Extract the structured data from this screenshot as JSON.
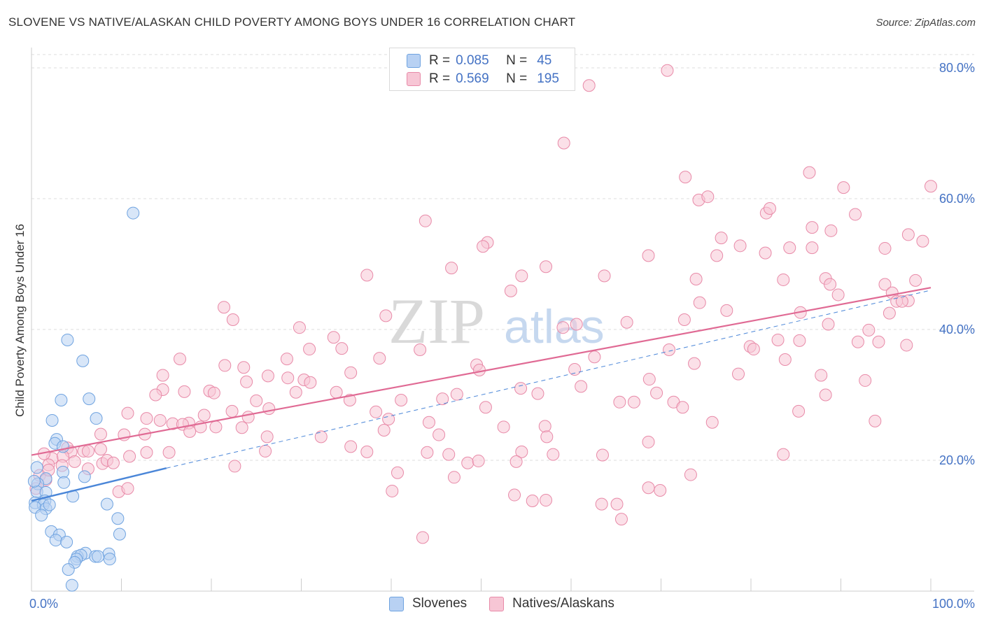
{
  "title": "SLOVENE VS NATIVE/ALASKAN CHILD POVERTY AMONG BOYS UNDER 16 CORRELATION CHART",
  "source": "Source: ZipAtlas.com",
  "watermark": {
    "zip": "ZIP",
    "atlas": "atlas"
  },
  "legend": {
    "r_label": "R =",
    "n_label": "N =",
    "series": [
      {
        "name": "Slovenes",
        "r": "0.085",
        "n": "45",
        "color": "#6fa3e0",
        "fill": "#b8d1f3"
      },
      {
        "name": "Natives/Alaskans",
        "r": "0.569",
        "n": "195",
        "color": "#e88aa8",
        "fill": "#f7c6d5"
      }
    ]
  },
  "chart_data": {
    "type": "scatter",
    "title": "SLOVENE VS NATIVE/ALASKAN CHILD POVERTY AMONG BOYS UNDER 16 CORRELATION CHART",
    "xlabel": "",
    "ylabel": "Child Poverty Among Boys Under 16",
    "xlim": [
      0,
      100
    ],
    "ylim": [
      0,
      80
    ],
    "x_tick_labels": [
      "0.0%",
      "100.0%"
    ],
    "y_ticks": [
      20,
      40,
      60,
      80
    ],
    "y_tick_labels": [
      "20.0%",
      "40.0%",
      "60.0%",
      "80.0%"
    ],
    "grid": "horizontal dashed",
    "series": [
      {
        "name": "Slovenes",
        "color": "#4a86d8",
        "trend": {
          "x0": 0,
          "y0": 13.8,
          "x1": 15,
          "y1": 18.8,
          "dashed_to_x": 100,
          "dashed_to_y": 46
        },
        "points": [
          [
            11.3,
            57.8
          ],
          [
            4,
            38.4
          ],
          [
            5.7,
            35.2
          ],
          [
            6.4,
            29.4
          ],
          [
            3.3,
            29.2
          ],
          [
            2.3,
            26.1
          ],
          [
            7.2,
            26.4
          ],
          [
            2.8,
            23.2
          ],
          [
            2.6,
            22.6
          ],
          [
            3.5,
            22.1
          ],
          [
            0.6,
            18.9
          ],
          [
            3.5,
            18.2
          ],
          [
            5.9,
            17.5
          ],
          [
            1.6,
            17.2
          ],
          [
            0.7,
            16.4
          ],
          [
            0.6,
            15.2
          ],
          [
            3.6,
            16.6
          ],
          [
            1.6,
            15.1
          ],
          [
            4.6,
            14.5
          ],
          [
            0.4,
            13.5
          ],
          [
            1.5,
            13.8
          ],
          [
            1.3,
            13.2
          ],
          [
            0.4,
            12.8
          ],
          [
            1.6,
            12.6
          ],
          [
            8.4,
            13.3
          ],
          [
            1.1,
            11.6
          ],
          [
            9.6,
            11.1
          ],
          [
            2.2,
            9.1
          ],
          [
            3.1,
            8.6
          ],
          [
            9.8,
            8.7
          ],
          [
            2.7,
            7.8
          ],
          [
            3.9,
            7.5
          ],
          [
            6,
            5.8
          ],
          [
            8.6,
            5.7
          ],
          [
            5.1,
            5.3
          ],
          [
            5.5,
            5.5
          ],
          [
            7.1,
            5.3
          ],
          [
            7.4,
            5.3
          ],
          [
            8.7,
            4.9
          ],
          [
            5,
            4.9
          ],
          [
            4.8,
            4.4
          ],
          [
            4.1,
            3.3
          ],
          [
            4.5,
            0.9
          ],
          [
            0.3,
            16.8
          ],
          [
            2,
            13.2
          ]
        ]
      },
      {
        "name": "Natives/Alaskans",
        "color": "#e06a94",
        "trend": {
          "x0": 0,
          "y0": 20.8,
          "x1": 100,
          "y1": 46.4
        },
        "points": [
          [
            70.7,
            79.6
          ],
          [
            62,
            77.3
          ],
          [
            59.2,
            68.5
          ],
          [
            72.7,
            63.3
          ],
          [
            86.5,
            64
          ],
          [
            90.3,
            61.7
          ],
          [
            100,
            61.9
          ],
          [
            74.2,
            59.8
          ],
          [
            75.2,
            60.3
          ],
          [
            81.7,
            57.8
          ],
          [
            82.1,
            58.5
          ],
          [
            43.8,
            56.6
          ],
          [
            91.6,
            57.6
          ],
          [
            88.9,
            55.1
          ],
          [
            97.5,
            54.5
          ],
          [
            50.7,
            53.3
          ],
          [
            50.2,
            52.7
          ],
          [
            76.7,
            54
          ],
          [
            99.1,
            53.5
          ],
          [
            86.8,
            55.6
          ],
          [
            78.8,
            52.8
          ],
          [
            86.8,
            52.5
          ],
          [
            94.9,
            52.4
          ],
          [
            68.6,
            51.3
          ],
          [
            76.2,
            51.3
          ],
          [
            81.6,
            51.7
          ],
          [
            84.3,
            52.5
          ],
          [
            46.7,
            49.4
          ],
          [
            57.2,
            49.6
          ],
          [
            37.3,
            48.3
          ],
          [
            54.5,
            48.2
          ],
          [
            63.7,
            48.2
          ],
          [
            73.9,
            47.7
          ],
          [
            83.6,
            47.6
          ],
          [
            88.3,
            47.8
          ],
          [
            88.8,
            46.9
          ],
          [
            94.9,
            46.9
          ],
          [
            98.3,
            47.5
          ],
          [
            53.3,
            45.9
          ],
          [
            89.7,
            45.3
          ],
          [
            95.7,
            45.6
          ],
          [
            74.3,
            44.1
          ],
          [
            96.2,
            44.3
          ],
          [
            97.5,
            44.4
          ],
          [
            96.8,
            44.3
          ],
          [
            21.4,
            43.4
          ],
          [
            77.3,
            42.9
          ],
          [
            85.5,
            42.6
          ],
          [
            95.4,
            42.5
          ],
          [
            22.4,
            41.5
          ],
          [
            39.4,
            42.1
          ],
          [
            66.2,
            41.1
          ],
          [
            72.6,
            41.5
          ],
          [
            60.6,
            40.8
          ],
          [
            88.6,
            40.8
          ],
          [
            29.8,
            40.3
          ],
          [
            59.1,
            40.3
          ],
          [
            93.1,
            39.9
          ],
          [
            33.6,
            38.8
          ],
          [
            85.4,
            38.3
          ],
          [
            91.9,
            38.1
          ],
          [
            94.2,
            38.1
          ],
          [
            83,
            38.4
          ],
          [
            97.3,
            37.6
          ],
          [
            30.9,
            37
          ],
          [
            34.5,
            37.1
          ],
          [
            43.2,
            36.9
          ],
          [
            70.9,
            36.9
          ],
          [
            79.9,
            37.4
          ],
          [
            80.3,
            37
          ],
          [
            16.5,
            35.5
          ],
          [
            28.4,
            35.5
          ],
          [
            38.7,
            35.6
          ],
          [
            62.6,
            35.8
          ],
          [
            73.7,
            34.8
          ],
          [
            83.8,
            35.4
          ],
          [
            49.5,
            34.6
          ],
          [
            21.5,
            34.5
          ],
          [
            23.6,
            34.2
          ],
          [
            35.5,
            33.4
          ],
          [
            49.8,
            33.8
          ],
          [
            60.4,
            33.9
          ],
          [
            78.6,
            33.2
          ],
          [
            87.8,
            33
          ],
          [
            14.6,
            33
          ],
          [
            26.3,
            32.9
          ],
          [
            28.5,
            32.6
          ],
          [
            30.3,
            32.3
          ],
          [
            31,
            31.9
          ],
          [
            61.1,
            31.3
          ],
          [
            68.7,
            32.4
          ],
          [
            92.7,
            32.2
          ],
          [
            23.9,
            32
          ],
          [
            33.9,
            30.4
          ],
          [
            54.4,
            31
          ],
          [
            14.6,
            30.8
          ],
          [
            17,
            30.5
          ],
          [
            19.8,
            30.6
          ],
          [
            13.8,
            30
          ],
          [
            20.3,
            30.3
          ],
          [
            29.4,
            30.4
          ],
          [
            47.3,
            30.1
          ],
          [
            56.3,
            30.2
          ],
          [
            69.5,
            30.3
          ],
          [
            88.3,
            30
          ],
          [
            25,
            29.1
          ],
          [
            35.4,
            29.2
          ],
          [
            45.7,
            29.4
          ],
          [
            41.1,
            29.2
          ],
          [
            26.4,
            27.9
          ],
          [
            67,
            28.9
          ],
          [
            65.4,
            28.9
          ],
          [
            71.4,
            28.9
          ],
          [
            22.3,
            27.5
          ],
          [
            38.3,
            27.4
          ],
          [
            50.5,
            28.1
          ],
          [
            72.4,
            28.1
          ],
          [
            85.3,
            27.5
          ],
          [
            10.7,
            27.2
          ],
          [
            14.3,
            26.1
          ],
          [
            24.1,
            26.6
          ],
          [
            19.2,
            26.9
          ],
          [
            39.7,
            26.3
          ],
          [
            12.8,
            26.4
          ],
          [
            15.7,
            25.6
          ],
          [
            17.5,
            25.7
          ],
          [
            44.2,
            25.8
          ],
          [
            57.1,
            25.2
          ],
          [
            75.7,
            25.8
          ],
          [
            93.8,
            26
          ],
          [
            16.8,
            25.5
          ],
          [
            18.8,
            25.1
          ],
          [
            20.5,
            25.1
          ],
          [
            23.4,
            25
          ],
          [
            7.7,
            24
          ],
          [
            10.3,
            23.9
          ],
          [
            12.6,
            24
          ],
          [
            17.6,
            24.4
          ],
          [
            32.2,
            23.6
          ],
          [
            39.2,
            24.6
          ],
          [
            45.3,
            23.9
          ],
          [
            52.5,
            25.1
          ],
          [
            57.3,
            23.6
          ],
          [
            68.6,
            22.8
          ],
          [
            35.5,
            22.1
          ],
          [
            4,
            21.9
          ],
          [
            12.8,
            21.2
          ],
          [
            15.3,
            21.2
          ],
          [
            4.4,
            21.3
          ],
          [
            5.8,
            21.4
          ],
          [
            6.3,
            21.4
          ],
          [
            7.7,
            21.7
          ],
          [
            2.3,
            20.3
          ],
          [
            3.5,
            20.6
          ],
          [
            10.9,
            20.6
          ],
          [
            26,
            21.4
          ],
          [
            37.3,
            21.3
          ],
          [
            44,
            21.2
          ],
          [
            46.4,
            20.9
          ],
          [
            54.5,
            21.3
          ],
          [
            58,
            20.9
          ],
          [
            63.5,
            20.8
          ],
          [
            83.6,
            20.9
          ],
          [
            1.9,
            19.3
          ],
          [
            4.8,
            19.8
          ],
          [
            7.9,
            19.5
          ],
          [
            8.4,
            20
          ],
          [
            9.1,
            19.6
          ],
          [
            22.6,
            19.1
          ],
          [
            48.5,
            19.6
          ],
          [
            49.7,
            19.9
          ],
          [
            53.9,
            19.8
          ],
          [
            3.4,
            19.2
          ],
          [
            6.3,
            18.7
          ],
          [
            40.7,
            18.1
          ],
          [
            73.3,
            17.8
          ],
          [
            47,
            17.4
          ],
          [
            0.9,
            17.7
          ],
          [
            1.6,
            17
          ],
          [
            0.5,
            15.7
          ],
          [
            1.9,
            18.5
          ],
          [
            9.7,
            15.2
          ],
          [
            10.7,
            15.7
          ],
          [
            68.6,
            15.8
          ],
          [
            40.1,
            15.3
          ],
          [
            53.7,
            14.7
          ],
          [
            55.7,
            13.8
          ],
          [
            57.2,
            13.9
          ],
          [
            69.9,
            15.4
          ],
          [
            65.1,
            13.3
          ],
          [
            63.4,
            13.3
          ],
          [
            65.6,
            11
          ],
          [
            43.5,
            8.2
          ],
          [
            26.2,
            23.6
          ],
          [
            1.4,
            21
          ]
        ]
      }
    ]
  }
}
